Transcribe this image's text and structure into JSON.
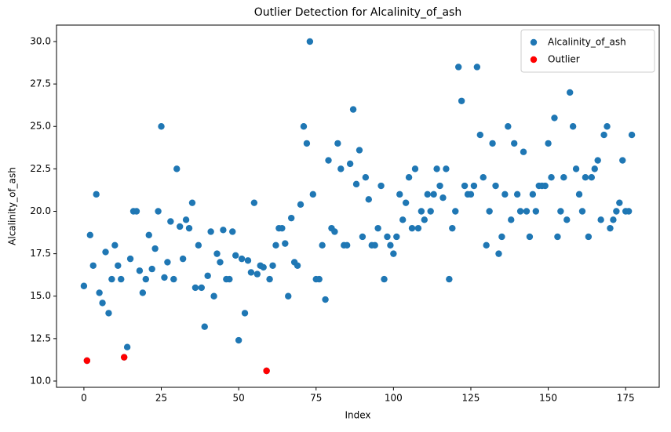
{
  "chart_data": {
    "type": "scatter",
    "title": "Outlier Detection for Alcalinity_of_ash",
    "x_label": "Index",
    "y_label": "Alcalinity_of_ash",
    "xlim": [
      -8.85,
      185.85
    ],
    "xticks": [
      0,
      25,
      50,
      75,
      100,
      125,
      150,
      175
    ],
    "ylim": [
      9.63,
      30.97
    ],
    "yticks": [
      {
        "value": 10,
        "label": "10.0"
      },
      12.5,
      {
        "value": 15,
        "label": "15.0"
      },
      17.5,
      {
        "value": 20,
        "label": "20.0"
      },
      22.5,
      {
        "value": 25,
        "label": "25.0"
      },
      27.5,
      {
        "value": 30,
        "label": "30.0"
      }
    ],
    "grid": false,
    "legend": "upper right",
    "series": [
      {
        "name": "Alcalinity_of_ash",
        "color": "#1f77b4",
        "x": [
          0,
          1,
          2,
          3,
          4,
          5,
          6,
          7,
          8,
          9,
          10,
          11,
          12,
          13,
          14,
          15,
          16,
          17,
          18,
          19,
          20,
          21,
          22,
          23,
          24,
          25,
          26,
          27,
          28,
          29,
          30,
          31,
          32,
          33,
          34,
          35,
          36,
          37,
          38,
          39,
          40,
          41,
          42,
          43,
          44,
          45,
          46,
          47,
          48,
          49,
          50,
          51,
          52,
          53,
          54,
          55,
          56,
          57,
          58,
          59,
          60,
          61,
          62,
          63,
          64,
          65,
          66,
          67,
          68,
          69,
          70,
          71,
          72,
          73,
          74,
          75,
          76,
          77,
          78,
          79,
          80,
          81,
          82,
          83,
          84,
          85,
          86,
          87,
          88,
          89,
          90,
          91,
          92,
          93,
          94,
          95,
          96,
          97,
          98,
          99,
          100,
          101,
          102,
          103,
          104,
          105,
          106,
          107,
          108,
          109,
          110,
          111,
          112,
          113,
          114,
          115,
          116,
          117,
          118,
          119,
          120,
          121,
          122,
          123,
          124,
          125,
          126,
          127,
          128,
          129,
          130,
          131,
          132,
          133,
          134,
          135,
          136,
          137,
          138,
          139,
          140,
          141,
          142,
          143,
          144,
          145,
          146,
          147,
          148,
          149,
          150,
          151,
          152,
          153,
          154,
          155,
          156,
          157,
          158,
          159,
          160,
          161,
          162,
          163,
          164,
          165,
          166,
          167,
          168,
          169,
          170,
          171,
          172,
          173,
          174,
          175,
          176,
          177
        ],
        "values": [
          15.6,
          11.2,
          18.6,
          16.8,
          21,
          15.2,
          14.6,
          17.6,
          14,
          16,
          18,
          16.8,
          16,
          11.4,
          12,
          17.2,
          20,
          20,
          16.5,
          15.2,
          16,
          18.6,
          16.6,
          17.8,
          20,
          25,
          16.1,
          17,
          19.4,
          16,
          22.5,
          19.1,
          17.2,
          19.5,
          19,
          20.5,
          15.5,
          18,
          15.5,
          13.2,
          16.2,
          18.8,
          15,
          17.5,
          17,
          18.9,
          16,
          16,
          18.8,
          17.4,
          12.4,
          17.2,
          14,
          17.1,
          16.4,
          20.5,
          16.3,
          16.8,
          16.7,
          10.6,
          16,
          16.8,
          18,
          19,
          19,
          18.1,
          15,
          19.6,
          17,
          16.8,
          20.4,
          25,
          24,
          30,
          21,
          16,
          16,
          18,
          14.8,
          23,
          19,
          18.8,
          24,
          22.5,
          18,
          18,
          22.8,
          26,
          21.6,
          23.6,
          18.5,
          22,
          20.7,
          18,
          18,
          19,
          21.5,
          16,
          18.5,
          18,
          17.5,
          18.5,
          21,
          19.5,
          20.5,
          22,
          19,
          22.5,
          19,
          20,
          19.5,
          21,
          20,
          21,
          22.5,
          21.5,
          20.8,
          22.5,
          16,
          19,
          20,
          28.5,
          26.5,
          21.5,
          21,
          21,
          21.5,
          28.5,
          24.5,
          22,
          18,
          20,
          24,
          21.5,
          17.5,
          18.5,
          21,
          25,
          19.5,
          24,
          21,
          20,
          23.5,
          20,
          18.5,
          21,
          20,
          21.5,
          21.5,
          21.5,
          24,
          22,
          25.5,
          18.5,
          20,
          22,
          19.5,
          27,
          25,
          22.5,
          21,
          20,
          22,
          18.5,
          22,
          22.5,
          23,
          19.5,
          24.5,
          25,
          19,
          19.5,
          20,
          20.5,
          23,
          20,
          20,
          24.5
        ]
      },
      {
        "name": "Outlier",
        "color": "#ff0000",
        "x": [
          1,
          13,
          59
        ],
        "values": [
          11.2,
          11.4,
          10.6
        ]
      }
    ]
  }
}
